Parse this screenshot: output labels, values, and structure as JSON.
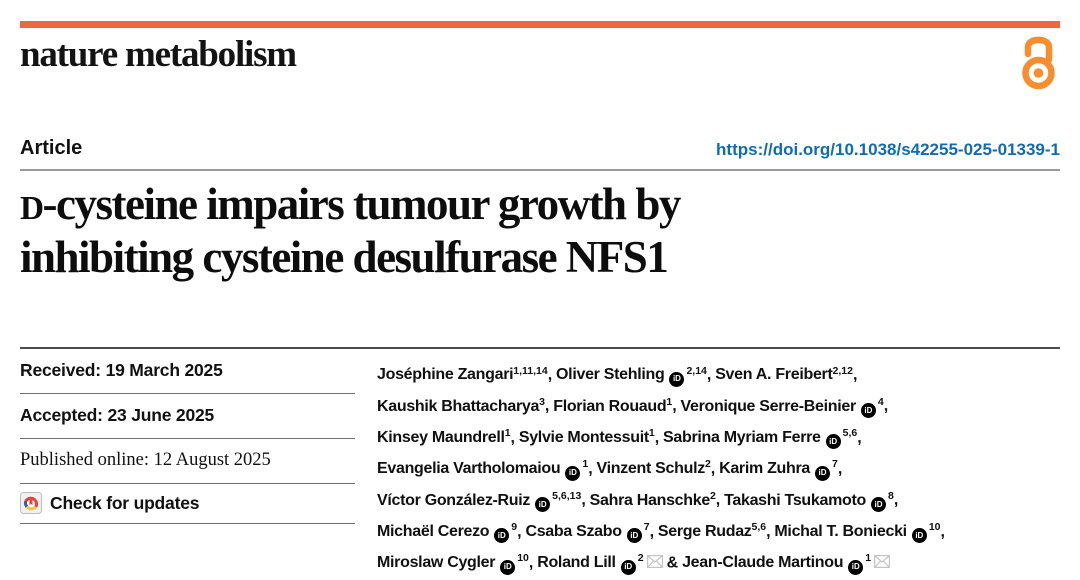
{
  "masthead": {
    "journal": "nature metabolism"
  },
  "article": {
    "kicker": "Article",
    "doi": "https://doi.org/10.1038/s42255-025-01339-1",
    "title_lines": [
      "D-cysteine impairs tumour growth by",
      "inhibiting cysteine desulfurase NFS1"
    ],
    "small_cap_lead": true
  },
  "meta": {
    "received": {
      "label": "Received:",
      "date": "19 March 2025"
    },
    "accepted": {
      "label": "Accepted:",
      "date": "23 June 2025"
    },
    "published": {
      "label": "Published online:",
      "date": "12 August 2025"
    },
    "check_updates": "Check for updates"
  },
  "icons": {
    "orcid": "iD",
    "email": "envelope",
    "open_access": "open-lock",
    "check_updates": "crossmark"
  },
  "colors": {
    "accent_orange": "#ee683b",
    "lock_orange": "#f68d2f",
    "link_blue": "#0f6cb4",
    "crossmark_red": "#e8413c",
    "crossmark_blue": "#3c5ba0",
    "crossmark_yellow": "#f2c54a"
  },
  "authors": [
    {
      "name": "Joséphine Zangari",
      "sup": "1,11,14",
      "orcid": false,
      "email": false,
      "sep": ", ",
      "br": false
    },
    {
      "name": "Oliver Stehling",
      "sup": "2,14",
      "orcid": true,
      "email": false,
      "sep": ", ",
      "br": false
    },
    {
      "name": "Sven A. Freibert",
      "sup": "2,12",
      "orcid": false,
      "email": false,
      "sep": ",",
      "br": true
    },
    {
      "name": "Kaushik Bhattacharya",
      "sup": "3",
      "orcid": false,
      "email": false,
      "sep": ", ",
      "br": false
    },
    {
      "name": "Florian Rouaud",
      "sup": "1",
      "orcid": false,
      "email": false,
      "sep": ", ",
      "br": false
    },
    {
      "name": "Veronique Serre-Beinier",
      "sup": "4",
      "orcid": true,
      "email": false,
      "sep": ",",
      "br": true
    },
    {
      "name": "Kinsey Maundrell",
      "sup": "1",
      "orcid": false,
      "email": false,
      "sep": ", ",
      "br": false
    },
    {
      "name": "Sylvie Montessuit",
      "sup": "1",
      "orcid": false,
      "email": false,
      "sep": ", ",
      "br": false
    },
    {
      "name": "Sabrina Myriam Ferre",
      "sup": "5,6",
      "orcid": true,
      "email": false,
      "sep": ",",
      "br": true
    },
    {
      "name": "Evangelia Vartholomaiou",
      "sup": "1",
      "orcid": true,
      "email": false,
      "sep": ", ",
      "br": false
    },
    {
      "name": "Vinzent Schulz",
      "sup": "2",
      "orcid": false,
      "email": false,
      "sep": ", ",
      "br": false
    },
    {
      "name": "Karim Zuhra",
      "sup": "7",
      "orcid": true,
      "email": false,
      "sep": ",",
      "br": true
    },
    {
      "name": "Víctor González-Ruiz",
      "sup": "5,6,13",
      "orcid": true,
      "email": false,
      "sep": ", ",
      "br": false
    },
    {
      "name": "Sahra Hanschke",
      "sup": "2",
      "orcid": false,
      "email": false,
      "sep": ", ",
      "br": false
    },
    {
      "name": "Takashi Tsukamoto",
      "sup": "8",
      "orcid": true,
      "email": false,
      "sep": ",",
      "br": true
    },
    {
      "name": "Michaël Cerezo",
      "sup": "9",
      "orcid": true,
      "email": false,
      "sep": ", ",
      "br": false
    },
    {
      "name": "Csaba Szabo",
      "sup": "7",
      "orcid": true,
      "email": false,
      "sep": ", ",
      "br": false
    },
    {
      "name": "Serge Rudaz",
      "sup": "5,6",
      "orcid": false,
      "email": false,
      "sep": ", ",
      "br": false
    },
    {
      "name": "Michal T. Boniecki",
      "sup": "10",
      "orcid": true,
      "email": false,
      "sep": ",",
      "br": true
    },
    {
      "name": "Miroslaw Cygler",
      "sup": "10",
      "orcid": true,
      "email": false,
      "sep": ", ",
      "br": false
    },
    {
      "name": "Roland Lill",
      "sup": "2",
      "orcid": true,
      "email": true,
      "sep": " & ",
      "br": false
    },
    {
      "name": "Jean-Claude Martinou",
      "sup": "1",
      "orcid": true,
      "email": true,
      "sep": "",
      "br": false
    }
  ]
}
